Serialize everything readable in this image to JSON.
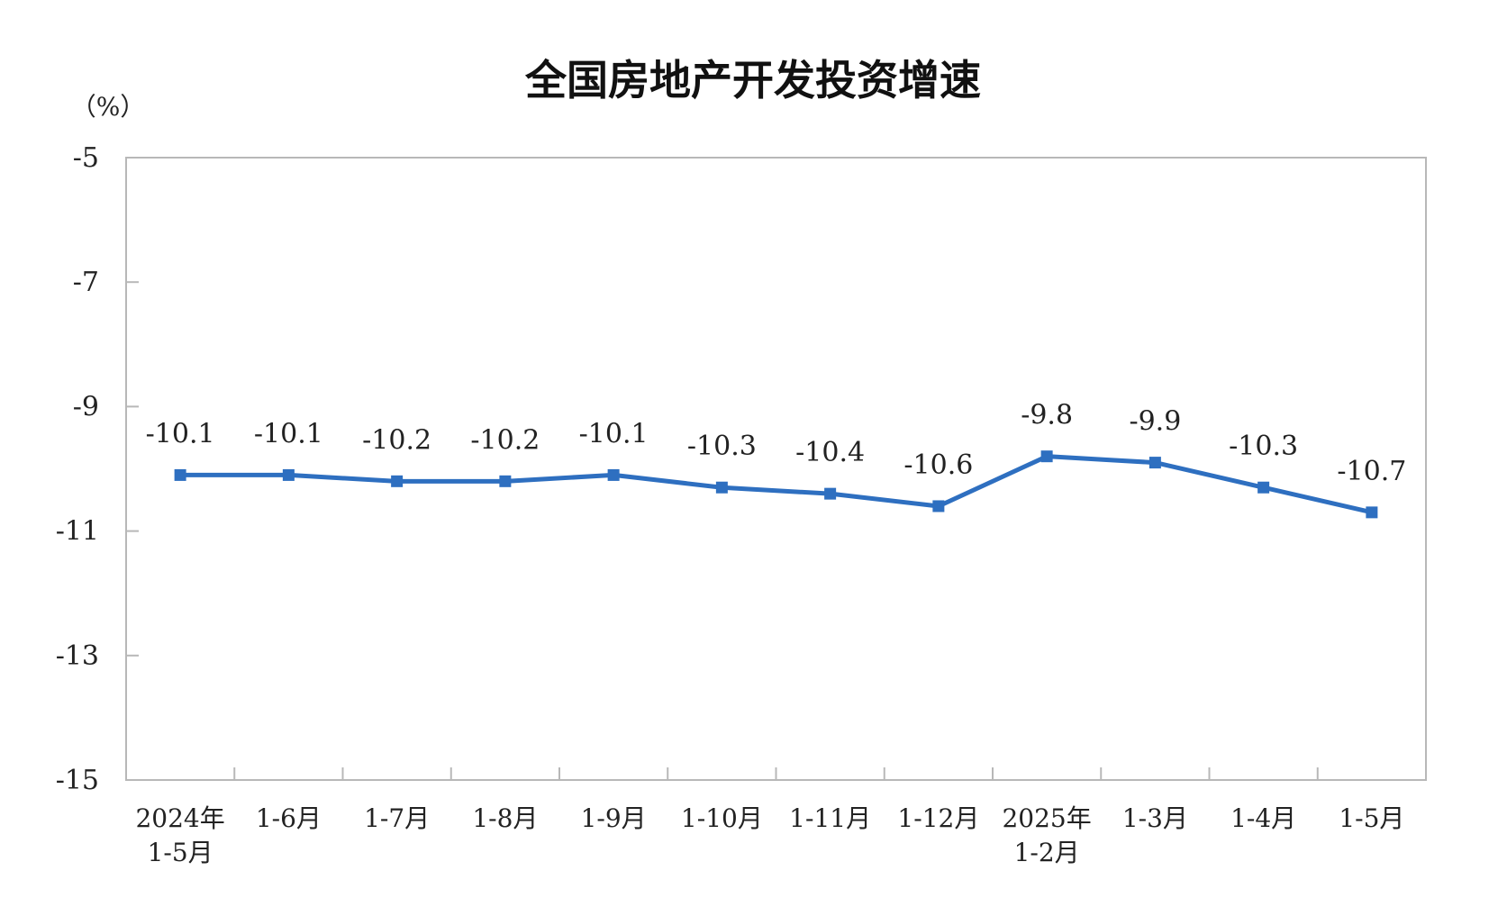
{
  "chart_data": {
    "type": "line",
    "title": "全国房地产开发投资增速",
    "unit": "（%）",
    "ylim": [
      -15,
      -5
    ],
    "yticks": [
      -5,
      -7,
      -9,
      -11,
      -13,
      -15
    ],
    "grid": false,
    "legend": "none",
    "categories": [
      [
        "2024年",
        "1-5月"
      ],
      [
        "1-6月"
      ],
      [
        "1-7月"
      ],
      [
        "1-8月"
      ],
      [
        "1-9月"
      ],
      [
        "1-10月"
      ],
      [
        "1-11月"
      ],
      [
        "1-12月"
      ],
      [
        "2025年",
        "1-2月"
      ],
      [
        "1-3月"
      ],
      [
        "1-4月"
      ],
      [
        "1-5月"
      ]
    ],
    "series": [
      {
        "values": [
          -10.1,
          -10.1,
          -10.2,
          -10.2,
          -10.1,
          -10.3,
          -10.4,
          -10.6,
          -9.8,
          -9.9,
          -10.3,
          -10.7
        ],
        "labels": [
          "-10.1",
          "-10.1",
          "-10.2",
          "-10.2",
          "-10.1",
          "-10.3",
          "-10.4",
          "-10.6",
          "-9.8",
          "-9.9",
          "-10.3",
          "-10.7"
        ],
        "color": "#2e6fc0"
      }
    ],
    "colors": {
      "axis": "#b8b8b8",
      "line": "#2e6fc0"
    }
  }
}
